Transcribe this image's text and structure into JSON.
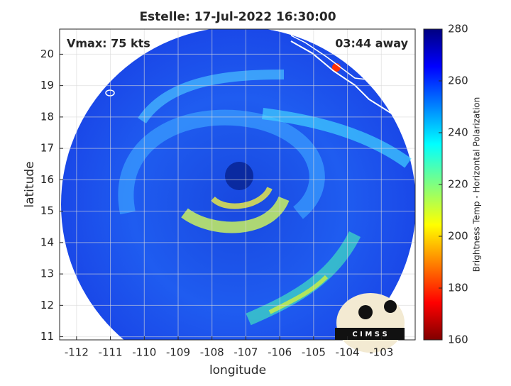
{
  "chart_data": {
    "type": "image",
    "title": "Estelle: 17-Jul-2022 16:30:00",
    "xlabel": "longitude",
    "ylabel": "latitude",
    "annotations": [
      "Vmax: 75 kts",
      "03:44 away"
    ],
    "logo": "C I M S S",
    "xlim": [
      -112.5,
      -102
    ],
    "xticks": [
      -112,
      -111,
      -110,
      -109,
      -108,
      -107,
      -106,
      -105,
      -104,
      -103
    ],
    "ylim": [
      10.9,
      20.8
    ],
    "yticks": [
      11,
      12,
      13,
      14,
      15,
      16,
      17,
      18,
      19,
      20
    ],
    "grid": true,
    "colorbar": {
      "label": "Brightness Temp - Horizontal Polarization",
      "colormap": "jet",
      "lim": [
        160,
        280
      ],
      "ticks": [
        160,
        180,
        200,
        220,
        240,
        260,
        280
      ]
    }
  }
}
